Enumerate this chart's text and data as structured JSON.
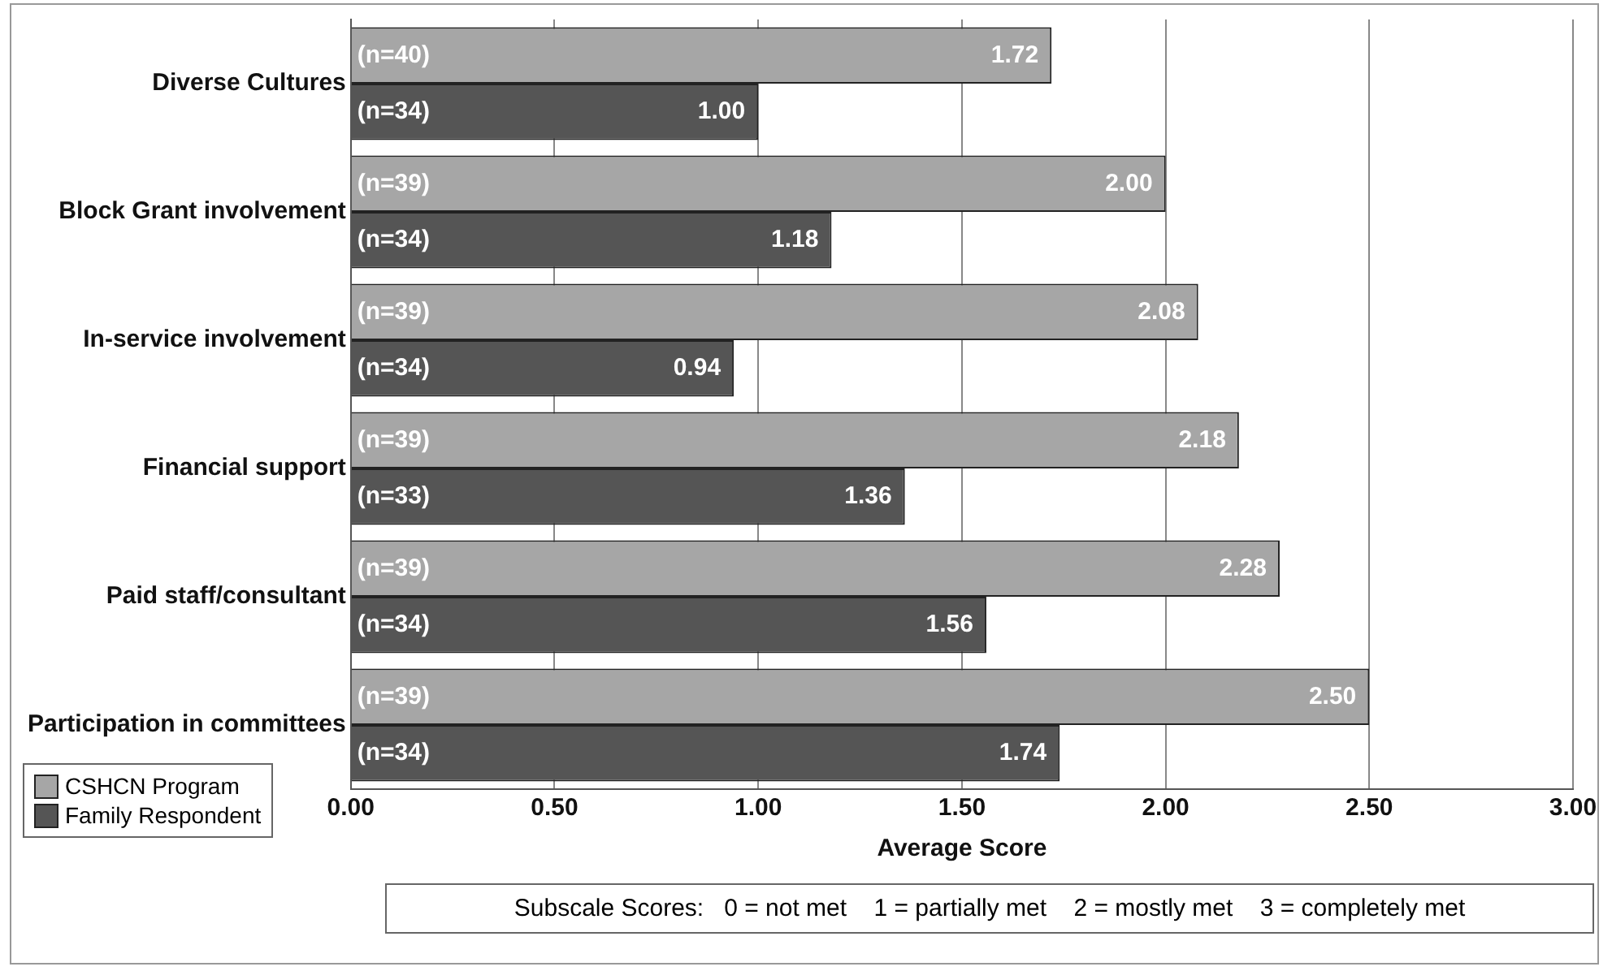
{
  "chart_data": {
    "type": "bar",
    "orientation": "horizontal",
    "xlabel": "Average Score",
    "categories": [
      "Diverse Cultures",
      "Block Grant involvement",
      "In-service involvement",
      "Financial support",
      "Paid staff/consultant",
      "Participation in committees"
    ],
    "series": [
      {
        "name": "CSHCN Program",
        "color": "#a6a6a6",
        "values": [
          1.72,
          2.0,
          2.08,
          2.18,
          2.28,
          2.5
        ],
        "value_labels": [
          "1.72",
          "2.00",
          "2.08",
          "2.18",
          "2.28",
          "2.50"
        ]
      },
      {
        "name": "Family Respondent",
        "color": "#555555",
        "values": [
          1.0,
          1.18,
          0.94,
          1.36,
          1.56,
          1.74
        ],
        "value_labels": [
          "1.00",
          "1.18",
          "0.94",
          "1.36",
          "1.56",
          "1.74"
        ]
      }
    ],
    "xlim": [
      0,
      3
    ],
    "xticks": [
      {
        "value": 0,
        "label": "0.00"
      },
      {
        "value": 0.5,
        "label": "0.50"
      },
      {
        "value": 1,
        "label": "1.00"
      },
      {
        "value": 1.5,
        "label": "1.50"
      },
      {
        "value": 2,
        "label": "2.00"
      },
      {
        "value": 2.5,
        "label": "2.50"
      },
      {
        "value": 3,
        "label": "3.00"
      }
    ],
    "grid": "x",
    "legend": "bottom left",
    "annotations": [
      {
        "text": "(n=40)",
        "y": "Diverse Cultures"
      },
      {
        "text": "(n=34)",
        "y": "Diverse Cultures"
      },
      {
        "text": "(n=39)",
        "y": "Block Grant involvement"
      },
      {
        "text": "(n=34)",
        "y": "Block Grant involvement"
      },
      {
        "text": "(n=39)",
        "y": "In-service involvement"
      },
      {
        "text": "(n=34)",
        "y": "In-service involvement"
      },
      {
        "text": "(n=39)",
        "y": "Financial support"
      },
      {
        "text": "(n=33)",
        "y": "Financial support"
      },
      {
        "text": "(n=39)",
        "y": "Paid staff/consultant"
      },
      {
        "text": "(n=34)",
        "y": "Paid staff/consultant"
      },
      {
        "text": "(n=39)",
        "y": "Participation in committees"
      },
      {
        "text": "(n=34)",
        "y": "Participation in committees"
      },
      "Subscale Scores:   0 = not met    1 = partially met    2 = mostly met    3 = completely met"
    ]
  }
}
